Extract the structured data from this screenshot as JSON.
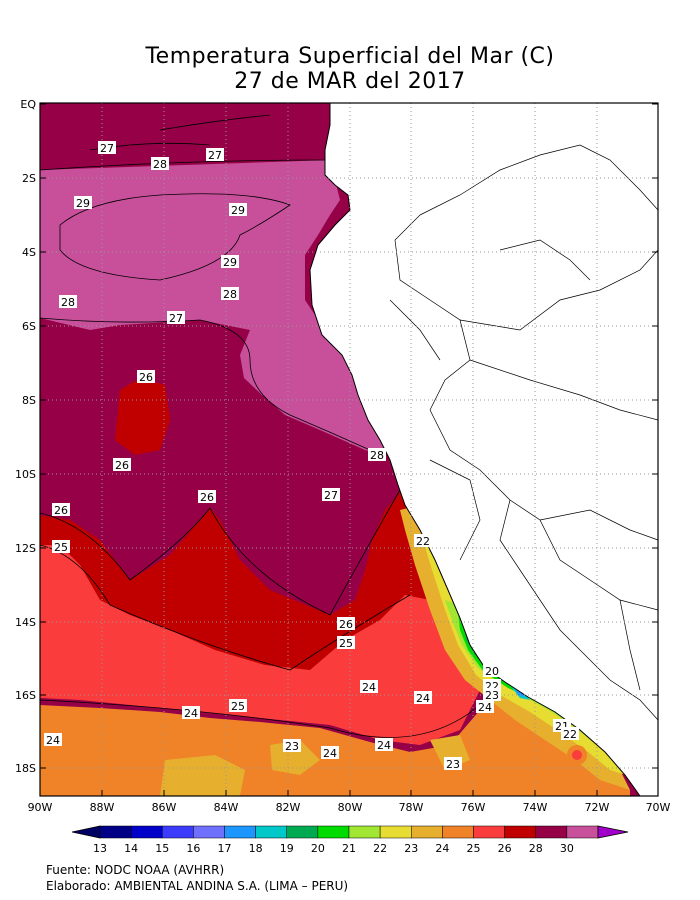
{
  "title": {
    "line1": "Temperatura Superficial del Mar (C)",
    "line2": "27 de MAR del 2017"
  },
  "axes": {
    "y_ticks": [
      "EQ",
      "2S",
      "4S",
      "6S",
      "8S",
      "10S",
      "12S",
      "14S",
      "16S",
      "18S"
    ],
    "x_ticks": [
      "90W",
      "88W",
      "86W",
      "84W",
      "82W",
      "80W",
      "78W",
      "76W",
      "74W",
      "72W",
      "70W"
    ]
  },
  "colorbar": {
    "labels": [
      "13",
      "14",
      "15",
      "16",
      "17",
      "18",
      "19",
      "20",
      "21",
      "22",
      "23",
      "24",
      "25",
      "26",
      "28",
      "30"
    ],
    "colors": [
      "#000087",
      "#0000c8",
      "#3c3cff",
      "#7070ff",
      "#1e96ff",
      "#00c8c8",
      "#00aa50",
      "#00dc00",
      "#a0e632",
      "#e6dc32",
      "#e6af2d",
      "#f08228",
      "#fa3c3c",
      "#c00000",
      "#960046",
      "#c8509b"
    ],
    "low_end_color": "#000064",
    "high_end_color": "#a000c8"
  },
  "contour_labels": [
    {
      "text": "27"
    },
    {
      "text": "28"
    },
    {
      "text": "27"
    },
    {
      "text": "29"
    },
    {
      "text": "29"
    },
    {
      "text": "29"
    },
    {
      "text": "28"
    },
    {
      "text": "28"
    },
    {
      "text": "27"
    },
    {
      "text": "26"
    },
    {
      "text": "26"
    },
    {
      "text": "28"
    },
    {
      "text": "26"
    },
    {
      "text": "27"
    },
    {
      "text": "26"
    },
    {
      "text": "25"
    },
    {
      "text": "22"
    },
    {
      "text": "26"
    },
    {
      "text": "25"
    },
    {
      "text": "24"
    },
    {
      "text": "24"
    },
    {
      "text": "20"
    },
    {
      "text": "22"
    },
    {
      "text": "23"
    },
    {
      "text": "24"
    },
    {
      "text": "25"
    },
    {
      "text": "24"
    },
    {
      "text": "21"
    },
    {
      "text": "22"
    },
    {
      "text": "24"
    },
    {
      "text": "23"
    },
    {
      "text": "24"
    },
    {
      "text": "24"
    },
    {
      "text": "23"
    }
  ],
  "footer": {
    "source": "Fuente: NODC NOAA (AVHRR)",
    "credit": "Elaborado: AMBIENTAL ANDINA S.A. (LIMA – PERU)"
  }
}
